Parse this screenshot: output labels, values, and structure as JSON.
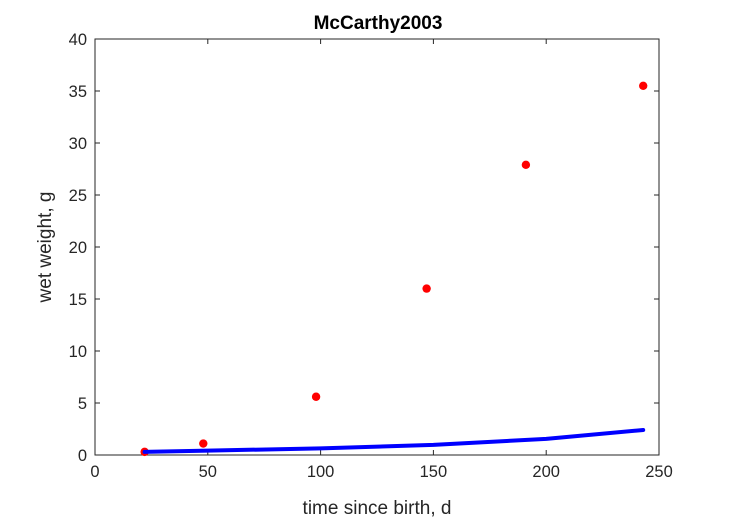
{
  "chart_data": {
    "type": "scatter",
    "title": "McCarthy2003",
    "xlabel": "time since birth, d",
    "ylabel": "wet weight, g",
    "xlim": [
      0,
      250
    ],
    "ylim": [
      0,
      40
    ],
    "xticks": [
      0,
      50,
      100,
      150,
      200,
      250
    ],
    "yticks": [
      0,
      5,
      10,
      15,
      20,
      25,
      30,
      35,
      40
    ],
    "grid": false,
    "series": [
      {
        "kind": "points",
        "color": "#ff0000",
        "x": [
          22,
          48,
          98,
          147,
          191,
          243
        ],
        "y": [
          0.3,
          1.1,
          5.6,
          16.0,
          27.9,
          35.5
        ]
      },
      {
        "kind": "line",
        "color": "#0000ff",
        "x": [
          22,
          50,
          100,
          150,
          200,
          243
        ],
        "y": [
          0.3,
          0.42,
          0.63,
          0.97,
          1.55,
          2.4
        ]
      }
    ]
  }
}
